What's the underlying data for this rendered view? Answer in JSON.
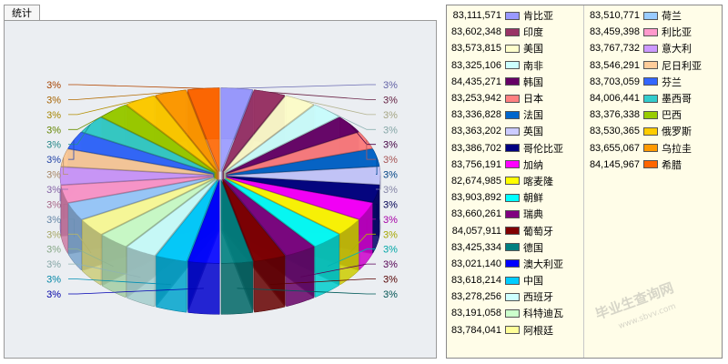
{
  "panel": {
    "tab_label": "统计"
  },
  "watermark": {
    "text": "毕业生查询网",
    "subtext": "www.sbvv.com"
  },
  "chart_data": {
    "type": "pie",
    "style": "3d exploded",
    "slice_label": "3%",
    "legend_placement": "right",
    "series": [
      {
        "name": "肯比亚",
        "value": 83111571,
        "color": "#9999ff"
      },
      {
        "name": "印度",
        "value": 83602348,
        "color": "#993366"
      },
      {
        "name": "美国",
        "value": 83573815,
        "color": "#ffffcc"
      },
      {
        "name": "南非",
        "value": 83325106,
        "color": "#ccffff"
      },
      {
        "name": "韩国",
        "value": 84435271,
        "color": "#660066"
      },
      {
        "name": "日本",
        "value": 83253942,
        "color": "#ff8080"
      },
      {
        "name": "法国",
        "value": 83336828,
        "color": "#0066cc"
      },
      {
        "name": "英国",
        "value": 83363202,
        "color": "#ccccff"
      },
      {
        "name": "哥伦比亚",
        "value": 83386702,
        "color": "#000080"
      },
      {
        "name": "加纳",
        "value": 83756191,
        "color": "#ff00ff"
      },
      {
        "name": "喀麦隆",
        "value": 82674985,
        "color": "#ffff00"
      },
      {
        "name": "朝鲜",
        "value": 83903892,
        "color": "#00ffff"
      },
      {
        "name": "瑞典",
        "value": 83660261,
        "color": "#800080"
      },
      {
        "name": "葡萄牙",
        "value": 84057911,
        "color": "#800000"
      },
      {
        "name": "德国",
        "value": 83425334,
        "color": "#008080"
      },
      {
        "name": "澳大利亚",
        "value": 83021140,
        "color": "#0000ff"
      },
      {
        "name": "中国",
        "value": 83618214,
        "color": "#00ccff"
      },
      {
        "name": "西班牙",
        "value": 83278256,
        "color": "#ccffff"
      },
      {
        "name": "科特迪瓦",
        "value": 83191058,
        "color": "#ccffcc"
      },
      {
        "name": "阿根廷",
        "value": 83784041,
        "color": "#ffff99"
      },
      {
        "name": "荷兰",
        "value": 83510771,
        "color": "#99ccff"
      },
      {
        "name": "利比亚",
        "value": 83459398,
        "color": "#ff99cc"
      },
      {
        "name": "意大利",
        "value": 83767732,
        "color": "#cc99ff"
      },
      {
        "name": "尼日利亚",
        "value": 83546291,
        "color": "#ffcc99"
      },
      {
        "name": "芬兰",
        "value": 83703059,
        "color": "#3366ff"
      },
      {
        "name": "墨西哥",
        "value": 84006441,
        "color": "#33cccc"
      },
      {
        "name": "巴西",
        "value": 83376338,
        "color": "#99cc00"
      },
      {
        "name": "俄罗斯",
        "value": 83530365,
        "color": "#ffcc00"
      },
      {
        "name": "乌拉圭",
        "value": 83655067,
        "color": "#ff9900"
      },
      {
        "name": "希腊",
        "value": 84145967,
        "color": "#ff6600"
      }
    ]
  }
}
